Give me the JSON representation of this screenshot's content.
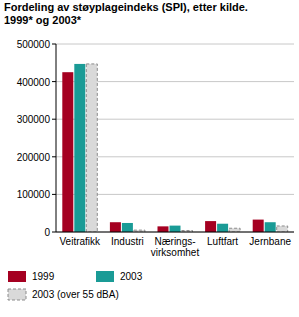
{
  "chart_data": {
    "type": "bar",
    "title": "Fordeling av støyplageindeks (SPI), etter kilde.",
    "subtitle": "1999* og 2003*",
    "categories": [
      "Veitrafikk",
      "Industri",
      "Nærings-\nvirksomhet",
      "Luftfart",
      "Jernbane"
    ],
    "series": [
      {
        "name": "1999",
        "color": "#a50021",
        "values": [
          425000,
          26000,
          15000,
          29000,
          33000
        ]
      },
      {
        "name": "2003",
        "color": "#1a9b96",
        "values": [
          447000,
          24000,
          17000,
          22000,
          26000
        ]
      },
      {
        "name": "2003 (over 55 dBA)",
        "color": "#d9d9d9",
        "line_style": "dashed",
        "values": [
          447000,
          5000,
          4000,
          10000,
          16000
        ]
      }
    ],
    "ylim": [
      0,
      500000
    ],
    "yticks": [
      0,
      100000,
      200000,
      300000,
      400000,
      500000
    ],
    "grid": true,
    "legend": "bottom"
  }
}
